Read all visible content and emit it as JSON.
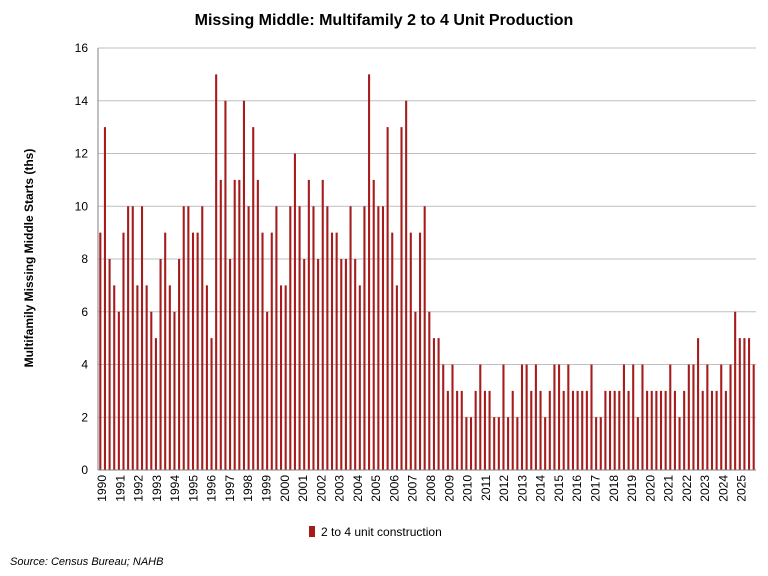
{
  "chart_data": {
    "type": "bar",
    "title": "Missing Middle: Multifamily 2 to 4 Unit Production",
    "ylabel": "Multifamily Missing Middle Starts (ths)",
    "xlabel": "",
    "ylim": [
      0,
      16
    ],
    "yticks": [
      0,
      2,
      4,
      6,
      8,
      10,
      12,
      14,
      16
    ],
    "grid": true,
    "legend_position": "bottom",
    "source": "Source: Census Bureau; NAHB",
    "colors": {
      "bar": "#a61c1c",
      "grid": "#bfbfbf"
    },
    "year_labels": [
      "1990",
      "1991",
      "1992",
      "1993",
      "1994",
      "1995",
      "1996",
      "1997",
      "1998",
      "1999",
      "2000",
      "2001",
      "2002",
      "2003",
      "2004",
      "2005",
      "2006",
      "2007",
      "2008",
      "2009",
      "2010",
      "2011",
      "2012",
      "2013",
      "2014",
      "2015",
      "2016",
      "2017",
      "2018",
      "2019",
      "2020",
      "2021",
      "2022",
      "2023",
      "2024",
      "2025"
    ],
    "series": [
      {
        "name": "2 to 4 unit construction",
        "values": [
          9,
          13,
          8,
          7,
          6,
          9,
          10,
          10,
          7,
          10,
          7,
          6,
          5,
          8,
          9,
          7,
          6,
          8,
          10,
          10,
          9,
          9,
          10,
          7,
          5,
          15,
          11,
          14,
          8,
          11,
          11,
          14,
          10,
          13,
          11,
          9,
          6,
          9,
          10,
          7,
          7,
          10,
          12,
          10,
          8,
          11,
          10,
          8,
          11,
          10,
          9,
          9,
          8,
          8,
          10,
          8,
          7,
          10,
          15,
          11,
          10,
          10,
          13,
          9,
          7,
          13,
          14,
          9,
          6,
          9,
          10,
          6,
          5,
          5,
          4,
          3,
          4,
          3,
          3,
          2,
          2,
          3,
          4,
          3,
          3,
          2,
          2,
          4,
          2,
          3,
          2,
          4,
          4,
          3,
          4,
          3,
          2,
          3,
          4,
          4,
          3,
          4,
          3,
          3,
          3,
          3,
          4,
          2,
          2,
          3,
          3,
          3,
          3,
          4,
          3,
          4,
          2,
          4,
          3,
          3,
          3,
          3,
          3,
          4,
          3,
          2,
          3,
          4,
          4,
          5,
          3,
          4,
          3,
          3,
          4,
          3,
          4,
          6,
          5,
          5,
          5,
          4
        ]
      }
    ]
  }
}
